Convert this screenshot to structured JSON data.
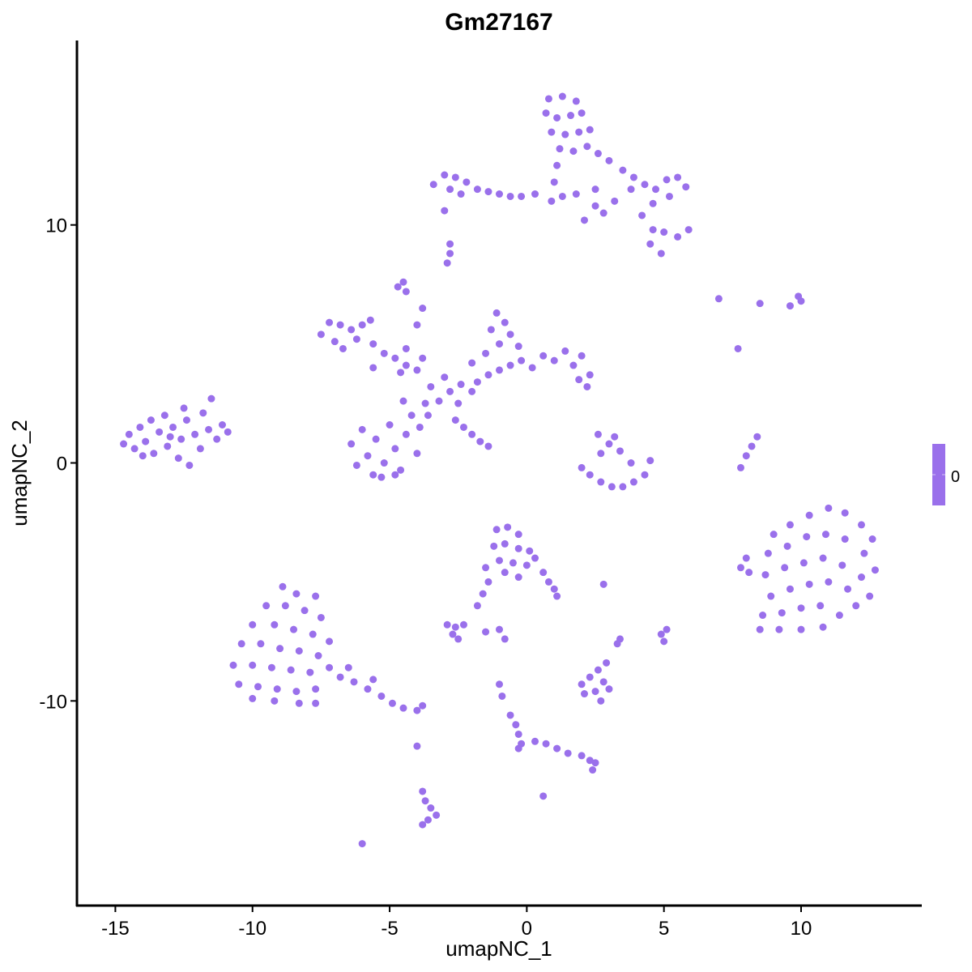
{
  "chart_data": {
    "type": "scatter",
    "title": "Gm27167",
    "xlabel": "umapNC_1",
    "ylabel": "umapNC_2",
    "xlim": [
      -16.4,
      14.4
    ],
    "ylim": [
      -18.6,
      17.75
    ],
    "x_ticks": [
      -15,
      -10,
      -5,
      0,
      5,
      10
    ],
    "y_ticks": [
      -10,
      0,
      10
    ],
    "grid": false,
    "point_color": "#9A70EB",
    "legend": {
      "position": "right",
      "type": "colorbar",
      "labels": [
        "0"
      ],
      "color": "#9A70EB"
    },
    "points": [
      [
        -14.7,
        0.8
      ],
      [
        -14.5,
        1.2
      ],
      [
        -14.3,
        0.6
      ],
      [
        -14.1,
        1.5
      ],
      [
        -13.9,
        0.9
      ],
      [
        -13.7,
        1.8
      ],
      [
        -13.6,
        0.4
      ],
      [
        -13.4,
        1.3
      ],
      [
        -13.2,
        2.0
      ],
      [
        -13.1,
        0.7
      ],
      [
        -12.9,
        1.5
      ],
      [
        -12.7,
        0.2
      ],
      [
        -12.6,
        1.0
      ],
      [
        -12.4,
        1.8
      ],
      [
        -12.3,
        -0.1
      ],
      [
        -12.1,
        1.2
      ],
      [
        -11.9,
        0.6
      ],
      [
        -11.8,
        2.1
      ],
      [
        -11.6,
        1.4
      ],
      [
        -11.5,
        2.7
      ],
      [
        -11.3,
        1.0
      ],
      [
        -11.1,
        1.6
      ],
      [
        -10.9,
        1.3
      ],
      [
        -13.0,
        1.1
      ],
      [
        -12.5,
        2.3
      ],
      [
        -14.0,
        0.3
      ],
      [
        0.8,
        15.3
      ],
      [
        1.3,
        15.4
      ],
      [
        1.8,
        15.2
      ],
      [
        0.7,
        14.7
      ],
      [
        1.1,
        14.5
      ],
      [
        1.6,
        14.6
      ],
      [
        2.0,
        14.7
      ],
      [
        0.9,
        13.9
      ],
      [
        1.4,
        13.8
      ],
      [
        1.9,
        13.9
      ],
      [
        2.3,
        14.0
      ],
      [
        1.2,
        13.2
      ],
      [
        1.7,
        13.1
      ],
      [
        2.2,
        13.3
      ],
      [
        2.6,
        13.0
      ],
      [
        1.1,
        12.5
      ],
      [
        1.0,
        11.8
      ],
      [
        1.3,
        11.2
      ],
      [
        0.9,
        11.0
      ],
      [
        1.8,
        11.3
      ],
      [
        2.5,
        11.5
      ],
      [
        3.0,
        12.7
      ],
      [
        3.5,
        12.3
      ],
      [
        3.9,
        12.0
      ],
      [
        4.3,
        11.7
      ],
      [
        4.7,
        11.5
      ],
      [
        5.1,
        11.9
      ],
      [
        5.5,
        12.0
      ],
      [
        5.8,
        11.6
      ],
      [
        5.2,
        11.2
      ],
      [
        4.6,
        10.9
      ],
      [
        4.2,
        10.4
      ],
      [
        4.6,
        9.8
      ],
      [
        5.0,
        9.7
      ],
      [
        5.5,
        9.5
      ],
      [
        5.9,
        9.8
      ],
      [
        4.5,
        9.2
      ],
      [
        4.9,
        8.8
      ],
      [
        3.2,
        11.0
      ],
      [
        2.8,
        10.5
      ],
      [
        2.5,
        10.8
      ],
      [
        3.8,
        11.5
      ],
      [
        2.1,
        10.2
      ],
      [
        -3.4,
        11.7
      ],
      [
        -3.0,
        12.1
      ],
      [
        -2.6,
        12.0
      ],
      [
        -2.2,
        11.8
      ],
      [
        -2.8,
        11.5
      ],
      [
        -2.4,
        11.3
      ],
      [
        -1.8,
        11.5
      ],
      [
        -1.4,
        11.4
      ],
      [
        -1.0,
        11.3
      ],
      [
        -0.6,
        11.2
      ],
      [
        -0.2,
        11.2
      ],
      [
        0.3,
        11.3
      ],
      [
        -3.0,
        10.6
      ],
      [
        -2.9,
        8.4
      ],
      [
        -2.8,
        8.8
      ],
      [
        -2.8,
        9.2
      ],
      [
        -2.8,
        3.0
      ],
      [
        -3.2,
        2.6
      ],
      [
        -2.4,
        3.3
      ],
      [
        -3.0,
        3.6
      ],
      [
        -2.5,
        2.5
      ],
      [
        -3.5,
        3.2
      ],
      [
        -2.0,
        3.0
      ],
      [
        -3.6,
        2.0
      ],
      [
        -7.5,
        5.4
      ],
      [
        -7.2,
        5.9
      ],
      [
        -6.8,
        5.8
      ],
      [
        -6.4,
        5.6
      ],
      [
        -6.0,
        5.8
      ],
      [
        -5.7,
        6.0
      ],
      [
        -7.0,
        5.1
      ],
      [
        -6.7,
        4.8
      ],
      [
        -6.2,
        5.2
      ],
      [
        -5.6,
        5.0
      ],
      [
        -5.2,
        4.6
      ],
      [
        -4.8,
        4.4
      ],
      [
        -4.4,
        4.1
      ],
      [
        -4.0,
        3.9
      ],
      [
        -3.8,
        4.4
      ],
      [
        -4.6,
        3.8
      ],
      [
        -5.6,
        4.0
      ],
      [
        -6.4,
        0.8
      ],
      [
        -6.2,
        -0.1
      ],
      [
        -6.0,
        1.4
      ],
      [
        -5.8,
        0.3
      ],
      [
        -5.6,
        -0.5
      ],
      [
        -5.5,
        1.0
      ],
      [
        -5.2,
        0.0
      ],
      [
        -5.0,
        1.6
      ],
      [
        -4.8,
        0.6
      ],
      [
        -4.6,
        -0.3
      ],
      [
        -4.4,
        1.2
      ],
      [
        -4.2,
        2.0
      ],
      [
        -4.0,
        0.4
      ],
      [
        -3.9,
        1.5
      ],
      [
        -3.7,
        2.5
      ],
      [
        -4.5,
        2.6
      ],
      [
        -5.3,
        -0.6
      ],
      [
        -4.8,
        -0.5
      ],
      [
        -1.8,
        3.4
      ],
      [
        -1.4,
        3.7
      ],
      [
        -1.0,
        3.9
      ],
      [
        -0.6,
        4.1
      ],
      [
        -0.2,
        4.3
      ],
      [
        0.2,
        4.0
      ],
      [
        0.6,
        4.5
      ],
      [
        1.0,
        4.3
      ],
      [
        1.4,
        4.7
      ],
      [
        1.7,
        4.1
      ],
      [
        2.0,
        4.5
      ],
      [
        2.3,
        3.7
      ],
      [
        2.2,
        3.2
      ],
      [
        1.9,
        3.5
      ],
      [
        -1.1,
        6.3
      ],
      [
        -0.8,
        5.9
      ],
      [
        -1.3,
        5.6
      ],
      [
        -0.6,
        5.4
      ],
      [
        -1.0,
        5.0
      ],
      [
        -0.3,
        4.9
      ],
      [
        -1.5,
        4.6
      ],
      [
        -2.0,
        4.2
      ],
      [
        -4.4,
        4.8
      ],
      [
        -4.0,
        5.8
      ],
      [
        -3.8,
        6.5
      ],
      [
        -4.7,
        7.4
      ],
      [
        -4.5,
        7.6
      ],
      [
        -4.4,
        7.2
      ],
      [
        -2.6,
        1.8
      ],
      [
        -2.3,
        1.5
      ],
      [
        -2.0,
        1.2
      ],
      [
        -1.7,
        0.9
      ],
      [
        -1.4,
        0.7
      ],
      [
        2.0,
        -0.2
      ],
      [
        2.3,
        -0.5
      ],
      [
        2.7,
        -0.8
      ],
      [
        3.1,
        -1.0
      ],
      [
        3.5,
        -1.0
      ],
      [
        3.9,
        -0.8
      ],
      [
        4.3,
        -0.5
      ],
      [
        2.7,
        0.4
      ],
      [
        3.0,
        0.8
      ],
      [
        3.2,
        1.1
      ],
      [
        2.6,
        1.2
      ],
      [
        3.4,
        0.5
      ],
      [
        4.5,
        0.1
      ],
      [
        3.8,
        0.0
      ],
      [
        7.8,
        -0.2
      ],
      [
        8.0,
        0.3
      ],
      [
        8.2,
        0.7
      ],
      [
        8.4,
        1.1
      ],
      [
        7.7,
        4.8
      ],
      [
        7.0,
        6.9
      ],
      [
        8.5,
        6.7
      ],
      [
        9.6,
        6.6
      ],
      [
        10.0,
        6.8
      ],
      [
        9.9,
        7.0
      ],
      [
        9.0,
        -3.0
      ],
      [
        9.6,
        -2.6
      ],
      [
        10.3,
        -2.2
      ],
      [
        11.0,
        -1.9
      ],
      [
        11.6,
        -2.1
      ],
      [
        12.2,
        -2.6
      ],
      [
        12.6,
        -3.2
      ],
      [
        8.8,
        -3.8
      ],
      [
        9.5,
        -3.5
      ],
      [
        10.2,
        -3.1
      ],
      [
        10.9,
        -3.0
      ],
      [
        11.6,
        -3.2
      ],
      [
        12.3,
        -3.8
      ],
      [
        12.7,
        -4.5
      ],
      [
        8.7,
        -4.7
      ],
      [
        9.4,
        -4.4
      ],
      [
        10.1,
        -4.2
      ],
      [
        10.8,
        -4.0
      ],
      [
        11.5,
        -4.3
      ],
      [
        12.2,
        -4.8
      ],
      [
        12.5,
        -5.6
      ],
      [
        8.9,
        -5.6
      ],
      [
        9.6,
        -5.3
      ],
      [
        10.3,
        -5.1
      ],
      [
        11.0,
        -5.0
      ],
      [
        11.7,
        -5.3
      ],
      [
        12.0,
        -6.0
      ],
      [
        8.6,
        -6.4
      ],
      [
        9.3,
        -6.3
      ],
      [
        10.0,
        -6.1
      ],
      [
        10.7,
        -6.0
      ],
      [
        11.4,
        -6.4
      ],
      [
        8.5,
        -7.0
      ],
      [
        9.2,
        -7.0
      ],
      [
        10.0,
        -7.0
      ],
      [
        10.8,
        -6.9
      ],
      [
        7.8,
        -4.4
      ],
      [
        8.1,
        -4.6
      ],
      [
        8.0,
        -4.0
      ],
      [
        -8.9,
        -5.2
      ],
      [
        -8.4,
        -5.5
      ],
      [
        -7.7,
        -5.6
      ],
      [
        -9.5,
        -6.0
      ],
      [
        -8.8,
        -6.0
      ],
      [
        -8.1,
        -6.2
      ],
      [
        -7.5,
        -6.5
      ],
      [
        -10.0,
        -6.8
      ],
      [
        -9.2,
        -6.8
      ],
      [
        -8.5,
        -7.0
      ],
      [
        -7.8,
        -7.2
      ],
      [
        -7.2,
        -7.5
      ],
      [
        -10.4,
        -7.6
      ],
      [
        -9.7,
        -7.6
      ],
      [
        -9.0,
        -7.8
      ],
      [
        -8.3,
        -7.9
      ],
      [
        -7.6,
        -8.1
      ],
      [
        -10.7,
        -8.5
      ],
      [
        -10.0,
        -8.5
      ],
      [
        -9.3,
        -8.6
      ],
      [
        -8.6,
        -8.7
      ],
      [
        -7.9,
        -8.8
      ],
      [
        -7.2,
        -8.6
      ],
      [
        -10.5,
        -9.3
      ],
      [
        -9.8,
        -9.4
      ],
      [
        -9.1,
        -9.5
      ],
      [
        -8.4,
        -9.6
      ],
      [
        -7.7,
        -9.5
      ],
      [
        -10.0,
        -9.9
      ],
      [
        -9.2,
        -10.0
      ],
      [
        -8.3,
        -10.1
      ],
      [
        -7.7,
        -10.1
      ],
      [
        -6.8,
        -9.0
      ],
      [
        -6.3,
        -9.2
      ],
      [
        -5.8,
        -9.5
      ],
      [
        -5.3,
        -9.8
      ],
      [
        -4.9,
        -10.1
      ],
      [
        -4.5,
        -10.3
      ],
      [
        -4.0,
        -10.4
      ],
      [
        -3.8,
        -10.2
      ],
      [
        -6.5,
        -8.6
      ],
      [
        -5.6,
        -9.1
      ],
      [
        -1.1,
        -2.8
      ],
      [
        -0.7,
        -2.7
      ],
      [
        -0.3,
        -3.0
      ],
      [
        -1.2,
        -3.5
      ],
      [
        -0.8,
        -3.4
      ],
      [
        -0.3,
        -3.6
      ],
      [
        0.1,
        -3.7
      ],
      [
        -1.0,
        -4.1
      ],
      [
        -0.5,
        -4.2
      ],
      [
        0.0,
        -4.3
      ],
      [
        0.3,
        -4.0
      ],
      [
        -0.8,
        -4.6
      ],
      [
        -0.3,
        -4.8
      ],
      [
        0.6,
        -4.6
      ],
      [
        0.8,
        -5.0
      ],
      [
        1.0,
        -5.3
      ],
      [
        1.1,
        -5.6
      ],
      [
        -1.4,
        -5.0
      ],
      [
        -1.6,
        -5.5
      ],
      [
        -1.8,
        -6.0
      ],
      [
        -1.5,
        -4.4
      ],
      [
        2.8,
        -5.1
      ],
      [
        -2.9,
        -6.8
      ],
      [
        -2.6,
        -6.9
      ],
      [
        -2.3,
        -6.8
      ],
      [
        -2.7,
        -7.2
      ],
      [
        -2.5,
        -7.4
      ],
      [
        -1.5,
        -7.1
      ],
      [
        -1.0,
        -7.0
      ],
      [
        -0.8,
        -7.4
      ],
      [
        2.0,
        -9.3
      ],
      [
        2.3,
        -9.0
      ],
      [
        2.6,
        -8.7
      ],
      [
        2.8,
        -9.2
      ],
      [
        2.5,
        -9.6
      ],
      [
        2.1,
        -9.7
      ],
      [
        2.9,
        -8.4
      ],
      [
        3.0,
        -9.5
      ],
      [
        2.7,
        -10.0
      ],
      [
        3.4,
        -7.4
      ],
      [
        3.3,
        -7.6
      ],
      [
        4.9,
        -7.2
      ],
      [
        5.1,
        -7.0
      ],
      [
        5.0,
        -7.5
      ],
      [
        -1.0,
        -9.3
      ],
      [
        -0.9,
        -9.8
      ],
      [
        -0.6,
        -10.6
      ],
      [
        -0.4,
        -11.0
      ],
      [
        -0.3,
        -11.4
      ],
      [
        -0.2,
        -11.8
      ],
      [
        -0.3,
        -12.0
      ],
      [
        0.3,
        -11.7
      ],
      [
        0.7,
        -11.8
      ],
      [
        1.1,
        -12.0
      ],
      [
        1.5,
        -12.2
      ],
      [
        2.0,
        -12.3
      ],
      [
        2.3,
        -12.5
      ],
      [
        2.5,
        -12.6
      ],
      [
        2.4,
        -12.9
      ],
      [
        -3.8,
        -13.8
      ],
      [
        -3.7,
        -14.2
      ],
      [
        -3.5,
        -14.5
      ],
      [
        -3.3,
        -14.8
      ],
      [
        -3.6,
        -15.0
      ],
      [
        -3.8,
        -15.2
      ],
      [
        -6.0,
        -16.0
      ],
      [
        -4.0,
        -11.9
      ],
      [
        0.6,
        -14.0
      ]
    ]
  }
}
